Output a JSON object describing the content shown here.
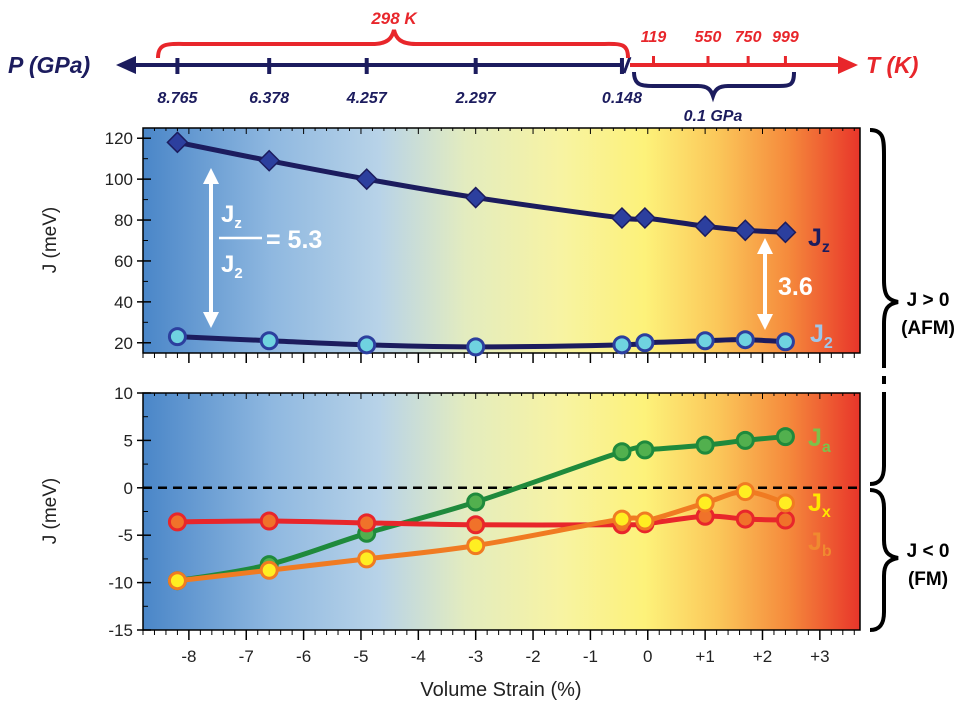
{
  "colors": {
    "navy": "#1c1c5e",
    "red": "#e8262b",
    "green": "#1f8a3c",
    "green_fill": "#52b04e",
    "orange": "#f07b22",
    "yellow_fill": "#ffee22",
    "cyan_fill": "#6fd3e0",
    "diamond": "#2c3f9e",
    "Jz_label": "#1c1c5e",
    "J2_label": "#9fc7ea",
    "Ja_label": "#7cc24a",
    "Jx_label": "#ffe600",
    "Jb_label": "#f08a30"
  },
  "top_axis": {
    "pressure_label": "P (GPa)",
    "temperature_label": "T (K)",
    "pressure_ticks": [
      {
        "strain": -8.2,
        "label": "8.765"
      },
      {
        "strain": -6.6,
        "label": "6.378"
      },
      {
        "strain": -4.9,
        "label": "4.257"
      },
      {
        "strain": -3.0,
        "label": "2.297"
      },
      {
        "strain": -0.45,
        "label": "0.148"
      }
    ],
    "temperature_ticks": [
      {
        "strain": 0.1,
        "label": "119"
      },
      {
        "strain": 1.05,
        "label": "550"
      },
      {
        "strain": 1.75,
        "label": "750"
      },
      {
        "strain": 2.4,
        "label": "999"
      }
    ],
    "room_temp_label": "298 K",
    "fixed_pressure_label": "0.1 GPa"
  },
  "chart_data": [
    {
      "type": "line",
      "xlabel": "",
      "ylabel": "J (meV)",
      "ylim": [
        15,
        125
      ],
      "yticks": [
        "20",
        "40",
        "60",
        "80",
        "100",
        "120"
      ],
      "series": [
        {
          "name": "J",
          "subscript": "z",
          "marker": "diamond",
          "x": [
            -8.2,
            -6.6,
            -4.9,
            -3.0,
            -0.45,
            -0.05,
            1.0,
            1.7,
            2.4
          ],
          "values": [
            118,
            109,
            100,
            91,
            81,
            81,
            77,
            75,
            74
          ]
        },
        {
          "name": "J",
          "subscript": "2",
          "marker": "circle",
          "x": [
            -8.2,
            -6.6,
            -4.9,
            -3.0,
            -0.45,
            -0.05,
            1.0,
            1.7,
            2.4
          ],
          "values": [
            23,
            21,
            19,
            18,
            19,
            20,
            21,
            21.5,
            20.5
          ]
        }
      ],
      "annotations": {
        "ratio_num": "J",
        "ratio_num_sub": "z",
        "ratio_den": "J",
        "ratio_den_sub": "2",
        "ratio_value": "= 5.3",
        "end_ratio": "3.6"
      }
    },
    {
      "type": "line",
      "xlabel": "Volume Strain (%)",
      "ylabel": "J (meV)",
      "xlim": [
        -8.8,
        3.7
      ],
      "ylim": [
        -15,
        10
      ],
      "xticks": [
        "-8",
        "-7",
        "-6",
        "-5",
        "-4",
        "-3",
        "-2",
        "-1",
        "0",
        "+1",
        "+2",
        "+3"
      ],
      "yticks": [
        "-15",
        "-10",
        "-5",
        "0",
        "5",
        "10"
      ],
      "series": [
        {
          "name": "J",
          "subscript": "a",
          "x": [
            -8.2,
            -6.6,
            -4.9,
            -3.0,
            -0.45,
            -0.05,
            1.0,
            1.7,
            2.4
          ],
          "values": [
            -9.8,
            -8.1,
            -4.8,
            -1.5,
            3.8,
            4.0,
            4.5,
            5.0,
            5.4
          ]
        },
        {
          "name": "J",
          "subscript": "x",
          "x": [
            -8.2,
            -6.6,
            -4.9,
            -3.0,
            -0.45,
            -0.05,
            1.0,
            1.7,
            2.4
          ],
          "values": [
            -3.6,
            -3.5,
            -3.7,
            -3.9,
            -3.9,
            -3.8,
            -3.0,
            -3.3,
            -3.4
          ]
        },
        {
          "name": "J",
          "subscript": "b",
          "x": [
            -8.2,
            -6.6,
            -4.9,
            -3.0,
            -0.45,
            -0.05,
            1.0,
            1.7,
            2.4
          ],
          "values": [
            -9.8,
            -8.7,
            -7.5,
            -6.1,
            -3.3,
            -3.5,
            -1.6,
            -0.4,
            -1.6
          ]
        }
      ]
    }
  ],
  "brackets": {
    "afm_line1": "J > 0",
    "afm_line2": "(AFM)",
    "fm_line1": "J < 0",
    "fm_line2": "(FM)"
  }
}
